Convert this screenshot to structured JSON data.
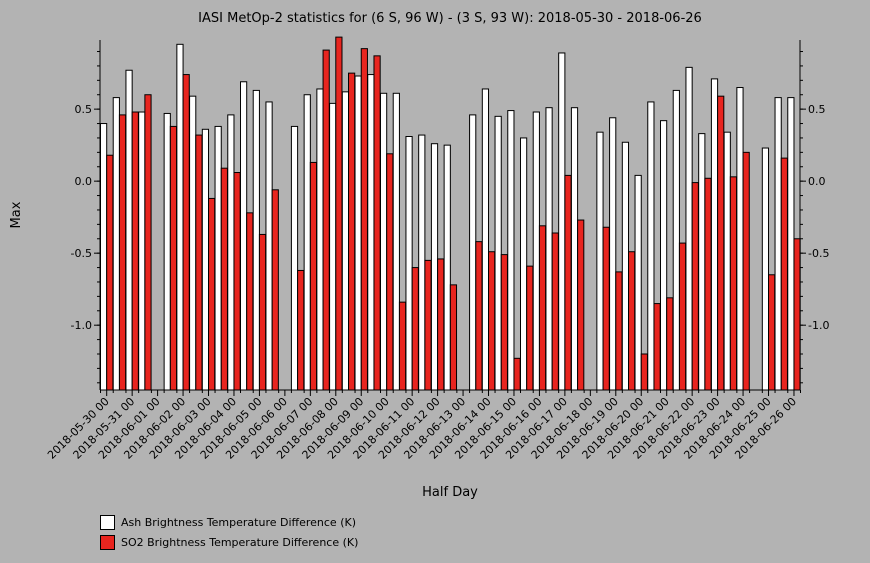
{
  "chart_data": {
    "type": "bar",
    "title": "IASI MetOp-2 statistics for (6 S, 96 W) - (3 S, 93 W): 2018-05-30 - 2018-06-26",
    "xlabel": "Half Day",
    "ylabel": "Max",
    "ylim": [
      -1.45,
      0.98
    ],
    "yticks": [
      -1.0,
      -0.5,
      0.0,
      0.5
    ],
    "ytick_labels": [
      "-1.0",
      "-0.5",
      "0.0",
      "0.5"
    ],
    "xtick_labels": [
      "2018-05-30 00",
      "2018-05-31 00",
      "2018-06-01 00",
      "2018-06-02 00",
      "2018-06-03 00",
      "2018-06-04 00",
      "2018-06-05 00",
      "2018-06-06 00",
      "2018-06-07 00",
      "2018-06-08 00",
      "2018-06-09 00",
      "2018-06-10 00",
      "2018-06-11 00",
      "2018-06-12 00",
      "2018-06-13 00",
      "2018-06-14 00",
      "2018-06-15 00",
      "2018-06-16 00",
      "2018-06-17 00",
      "2018-06-18 00",
      "2018-06-19 00",
      "2018-06-20 00",
      "2018-06-21 00",
      "2018-06-22 00",
      "2018-06-23 00",
      "2018-06-24 00",
      "2018-06-25 00",
      "2018-06-26 00"
    ],
    "series": [
      {
        "name": "Ash Brightness Temperature Difference (K)",
        "color": "#ffffff",
        "values": [
          0.4,
          0.58,
          0.77,
          0.48,
          null,
          0.47,
          0.95,
          0.59,
          0.36,
          0.38,
          0.46,
          0.69,
          0.63,
          0.55,
          null,
          0.38,
          0.6,
          0.64,
          0.54,
          0.62,
          0.73,
          0.74,
          0.61,
          0.61,
          0.31,
          0.32,
          0.26,
          0.25,
          null,
          0.46,
          0.64,
          0.45,
          0.49,
          0.3,
          0.48,
          0.51,
          0.89,
          0.51,
          null,
          0.34,
          0.44,
          0.27,
          0.04,
          0.55,
          0.42,
          0.63,
          0.79,
          0.33,
          0.71,
          0.34,
          0.65,
          null,
          0.23,
          0.58,
          0.58
        ]
      },
      {
        "name": "SO2 Brightness Temperature Difference (K)",
        "color": "#e8251f",
        "values": [
          0.18,
          0.46,
          0.48,
          0.6,
          null,
          0.38,
          0.74,
          0.32,
          -0.12,
          0.09,
          0.06,
          -0.22,
          -0.37,
          -0.06,
          null,
          -0.62,
          0.13,
          0.91,
          1.0,
          0.75,
          0.92,
          0.87,
          0.19,
          -0.84,
          -0.6,
          -0.55,
          -0.54,
          -0.72,
          null,
          -0.42,
          -0.49,
          -0.51,
          -1.23,
          -0.59,
          -0.31,
          -0.36,
          0.04,
          -0.27,
          null,
          -0.32,
          -0.63,
          -0.49,
          -1.2,
          -0.85,
          -0.81,
          -0.43,
          -0.01,
          0.02,
          0.59,
          0.03,
          0.2,
          null,
          -0.65,
          0.16,
          -0.4
        ]
      }
    ],
    "legend_position": "bottom-left",
    "grid": false
  }
}
